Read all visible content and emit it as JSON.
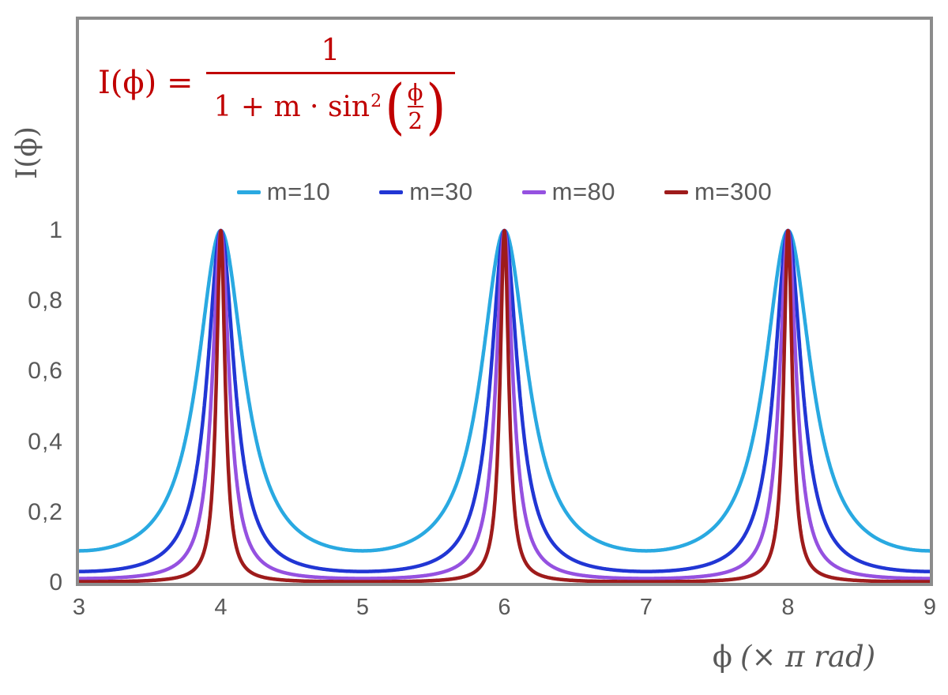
{
  "formula": {
    "lhs": "I(ϕ) =",
    "numerator": "1",
    "den_prefix": "1 + m · sin",
    "den_sup": "2",
    "inner_numerator": "ϕ",
    "inner_denominator": "2",
    "color": "#C00000"
  },
  "colors": {
    "frame_border": "#8C8C8C",
    "axis_text": "#595959",
    "formula_red": "#C00000"
  },
  "chart_data": {
    "type": "line",
    "title": "",
    "function": "I(phi) = 1 / (1 + m * sin^2(phi/2)), x axis in units of pi rad, so I(x) = 1/(1 + m*sin^2(x*pi/2))",
    "xlabel": "ϕ (× π rad)",
    "xlabel_symbol": "ϕ",
    "xlabel_unit": "(× π rad)",
    "ylabel": "I(ϕ)",
    "xlim": [
      3,
      9
    ],
    "ylim": [
      0,
      1.6
    ],
    "grid": false,
    "legend_position": "top-center",
    "sample_step": 0.002,
    "x_ticks": [
      {
        "v": 3,
        "label": "3"
      },
      {
        "v": 4,
        "label": "4"
      },
      {
        "v": 5,
        "label": "5"
      },
      {
        "v": 6,
        "label": "6"
      },
      {
        "v": 7,
        "label": "7"
      },
      {
        "v": 8,
        "label": "8"
      },
      {
        "v": 9,
        "label": "9"
      }
    ],
    "y_ticks": [
      {
        "v": 0,
        "label": "0"
      },
      {
        "v": 0.2,
        "label": "0,2"
      },
      {
        "v": 0.4,
        "label": "0,4"
      },
      {
        "v": 0.6,
        "label": "0,6"
      },
      {
        "v": 0.8,
        "label": "0,8"
      },
      {
        "v": 1,
        "label": "1"
      }
    ],
    "series": [
      {
        "name": "m=10",
        "m": 10,
        "color": "#29A9E1",
        "peak_x": [
          4,
          6,
          8
        ],
        "peak_value": 1,
        "min_value": 0.0909
      },
      {
        "name": "m=30",
        "m": 30,
        "color": "#2136D4",
        "peak_x": [
          4,
          6,
          8
        ],
        "peak_value": 1,
        "min_value": 0.0323
      },
      {
        "name": "m=80",
        "m": 80,
        "color": "#9551E0",
        "peak_x": [
          4,
          6,
          8
        ],
        "peak_value": 1,
        "min_value": 0.0123
      },
      {
        "name": "m=300",
        "m": 300,
        "color": "#9E1B1B",
        "peak_x": [
          4,
          6,
          8
        ],
        "peak_value": 1,
        "min_value": 0.0033
      }
    ]
  }
}
